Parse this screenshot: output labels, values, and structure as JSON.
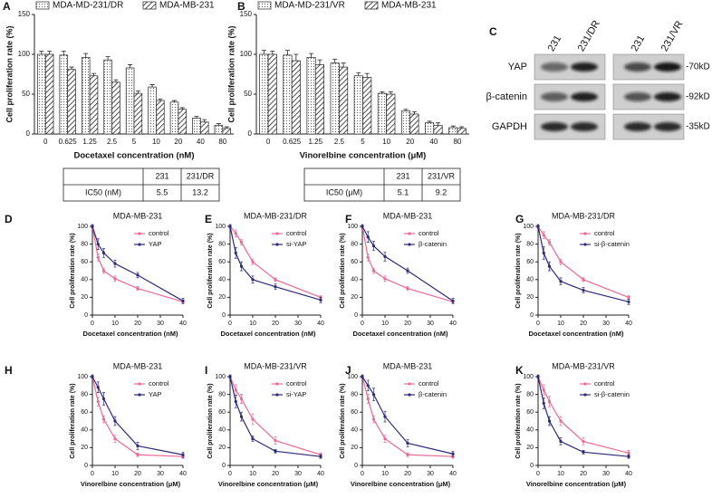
{
  "chart_data": [
    {
      "type": "bar",
      "panel": "A",
      "y_label": "Cell proliferation rate (%)",
      "x_label": "Docetaxel concentration (nM)",
      "categories": [
        "0",
        "0.625",
        "1.25",
        "2.5",
        "5",
        "10",
        "20",
        "40",
        "80"
      ],
      "series": [
        {
          "name": "MDA-MD-231/DR",
          "color": "#222222",
          "pattern": "dots",
          "values": [
            100,
            99,
            96,
            93,
            83,
            59,
            40,
            20,
            11
          ],
          "errors": [
            4,
            5,
            5,
            4,
            4,
            3,
            2,
            2,
            2
          ]
        },
        {
          "name": "MDA-MB-231",
          "color": "#222222",
          "pattern": "hatch",
          "values": [
            100,
            81,
            73,
            65,
            51,
            42,
            31,
            15,
            7
          ],
          "errors": [
            4,
            3,
            3,
            3,
            3,
            2,
            2,
            3,
            2
          ]
        }
      ],
      "ylim": [
        0,
        150
      ],
      "yticks": [
        0,
        50,
        100,
        150
      ],
      "legend": "top"
    },
    {
      "type": "bar",
      "panel": "B",
      "y_label": "Cell proliferation rate (%)",
      "x_label": "Vinorelbine concentration (μM)",
      "categories": [
        "0",
        "0.625",
        "1.25",
        "2.5",
        "5",
        "10",
        "20",
        "40",
        "80"
      ],
      "series": [
        {
          "name": "MDA-MD-231/VR",
          "color": "#222222",
          "pattern": "dots",
          "values": [
            100,
            99,
            96,
            89,
            73,
            51,
            29,
            14,
            8
          ],
          "errors": [
            5,
            6,
            5,
            5,
            4,
            2,
            2,
            2,
            2
          ]
        },
        {
          "name": "MDA-MB-231",
          "color": "#222222",
          "pattern": "hatch",
          "values": [
            100,
            92,
            87,
            84,
            71,
            50,
            25,
            11,
            7
          ],
          "errors": [
            4,
            8,
            6,
            5,
            5,
            3,
            3,
            3,
            2
          ]
        }
      ],
      "ylim": [
        0,
        150
      ],
      "yticks": [
        0,
        50,
        100,
        150
      ],
      "legend": "top"
    },
    {
      "type": "line",
      "panel": "D",
      "title": "MDA-MB-231",
      "y_label": "Cell proliferation rate (%)",
      "x_label": "Docetaxel concentration (nM)",
      "x": [
        0,
        2.5,
        5,
        10,
        20,
        40
      ],
      "series": [
        {
          "name": "control",
          "color": "#ea6a95",
          "values": [
            100,
            65,
            50,
            41,
            30,
            15
          ],
          "errors": [
            2,
            4,
            3,
            3,
            2,
            2
          ]
        },
        {
          "name": "YAP",
          "color": "#2d2a78",
          "values": [
            100,
            80,
            70,
            58,
            45,
            16
          ],
          "errors": [
            2,
            6,
            5,
            4,
            3,
            3
          ]
        }
      ],
      "xlim": [
        0,
        40
      ],
      "xticks": [
        0,
        10,
        20,
        30,
        40
      ],
      "ylim": [
        0,
        100
      ],
      "yticks": [
        0,
        20,
        40,
        60,
        80,
        100
      ],
      "legend": "upper right"
    },
    {
      "type": "line",
      "panel": "E",
      "title": "MDA-MB-231/DR",
      "y_label": "Cell proliferation rate (%)",
      "x_label": "Docetaxel concentration (nM)",
      "x": [
        0,
        2.5,
        5,
        10,
        20,
        40
      ],
      "series": [
        {
          "name": "control",
          "color": "#ea6a95",
          "values": [
            100,
            92,
            82,
            60,
            40,
            20
          ],
          "errors": [
            2,
            4,
            3,
            3,
            2,
            2
          ]
        },
        {
          "name": "si-YAP",
          "color": "#2d2a78",
          "values": [
            100,
            70,
            55,
            40,
            32,
            17
          ],
          "errors": [
            2,
            6,
            5,
            4,
            3,
            3
          ]
        }
      ],
      "xlim": [
        0,
        40
      ],
      "xticks": [
        0,
        10,
        20,
        30,
        40
      ],
      "ylim": [
        0,
        100
      ],
      "yticks": [
        0,
        20,
        40,
        60,
        80,
        100
      ],
      "legend": "upper right"
    },
    {
      "type": "line",
      "panel": "F",
      "title": "MDA-MB-231",
      "y_label": "Cell proliferation rate (%)",
      "x_label": "Docetaxel concentration (nM)",
      "x": [
        0,
        2.5,
        5,
        10,
        20,
        40
      ],
      "series": [
        {
          "name": "control",
          "color": "#ea6a95",
          "values": [
            100,
            65,
            50,
            41,
            30,
            15
          ],
          "errors": [
            2,
            4,
            3,
            3,
            2,
            2
          ]
        },
        {
          "name": "β-catenin",
          "color": "#2d2a78",
          "values": [
            100,
            88,
            78,
            66,
            50,
            16
          ],
          "errors": [
            2,
            6,
            5,
            5,
            3,
            3
          ]
        }
      ],
      "xlim": [
        0,
        40
      ],
      "xticks": [
        0,
        10,
        20,
        30,
        40
      ],
      "ylim": [
        0,
        100
      ],
      "yticks": [
        0,
        20,
        40,
        60,
        80,
        100
      ],
      "legend": "upper right"
    },
    {
      "type": "line",
      "panel": "G",
      "title": "MDA-MB-231/DR",
      "y_label": "Cell proliferation rate (%)",
      "x_label": "Docetaxel concentration (nM)",
      "x": [
        0,
        2.5,
        5,
        10,
        20,
        40
      ],
      "series": [
        {
          "name": "control",
          "color": "#ea6a95",
          "values": [
            100,
            90,
            82,
            60,
            40,
            20
          ],
          "errors": [
            2,
            4,
            3,
            3,
            2,
            2
          ]
        },
        {
          "name": "si-β-catenin",
          "color": "#2d2a78",
          "values": [
            100,
            70,
            55,
            38,
            28,
            15
          ],
          "errors": [
            2,
            7,
            5,
            4,
            3,
            3
          ]
        }
      ],
      "xlim": [
        0,
        40
      ],
      "xticks": [
        0,
        10,
        20,
        30,
        40
      ],
      "ylim": [
        0,
        100
      ],
      "yticks": [
        0,
        20,
        40,
        60,
        80,
        100
      ],
      "legend": "upper right"
    },
    {
      "type": "line",
      "panel": "H",
      "title": "MDA-MB-231",
      "y_label": "Cell proliferation rate (%)",
      "x_label": "Vinorelbine concentration (μM)",
      "x": [
        0,
        2.5,
        5,
        10,
        20,
        40
      ],
      "series": [
        {
          "name": "control",
          "color": "#ea6a95",
          "values": [
            100,
            72,
            52,
            30,
            12,
            10
          ],
          "errors": [
            2,
            5,
            4,
            4,
            2,
            2
          ]
        },
        {
          "name": "YAP",
          "color": "#2d2a78",
          "values": [
            100,
            88,
            75,
            50,
            22,
            12
          ],
          "errors": [
            2,
            6,
            7,
            5,
            4,
            3
          ]
        }
      ],
      "xlim": [
        0,
        40
      ],
      "xticks": [
        0,
        10,
        20,
        30,
        40
      ],
      "ylim": [
        0,
        100
      ],
      "yticks": [
        0,
        20,
        40,
        60,
        80,
        100
      ],
      "legend": "upper right"
    },
    {
      "type": "line",
      "panel": "I",
      "title": "MDA-MB-231/VR",
      "y_label": "Cell proliferation rate (%)",
      "x_label": "Vinorelbine concentration (μM)",
      "x": [
        0,
        2.5,
        5,
        10,
        20,
        40
      ],
      "series": [
        {
          "name": "control",
          "color": "#ea6a95",
          "values": [
            100,
            85,
            75,
            52,
            28,
            12
          ],
          "errors": [
            2,
            6,
            5,
            6,
            4,
            2
          ]
        },
        {
          "name": "si-YAP",
          "color": "#2d2a78",
          "values": [
            100,
            72,
            55,
            30,
            16,
            10
          ],
          "errors": [
            2,
            7,
            5,
            3,
            2,
            2
          ]
        }
      ],
      "xlim": [
        0,
        40
      ],
      "xticks": [
        0,
        10,
        20,
        30,
        40
      ],
      "ylim": [
        0,
        100
      ],
      "yticks": [
        0,
        20,
        40,
        60,
        80,
        100
      ],
      "legend": "upper right"
    },
    {
      "type": "line",
      "panel": "J",
      "title": "MDA-MB-231",
      "y_label": "Cell proliferation rate (%)",
      "x_label": "Vinorelbine concentration (μM)",
      "x": [
        0,
        2.5,
        5,
        10,
        20,
        40
      ],
      "series": [
        {
          "name": "control",
          "color": "#ea6a95",
          "values": [
            100,
            75,
            52,
            30,
            12,
            10
          ],
          "errors": [
            2,
            5,
            4,
            4,
            2,
            2
          ]
        },
        {
          "name": "β-catenin",
          "color": "#2d2a78",
          "values": [
            100,
            90,
            80,
            55,
            25,
            13
          ],
          "errors": [
            2,
            6,
            7,
            6,
            4,
            3
          ]
        }
      ],
      "xlim": [
        0,
        40
      ],
      "xticks": [
        0,
        10,
        20,
        30,
        40
      ],
      "ylim": [
        0,
        100
      ],
      "yticks": [
        0,
        20,
        40,
        60,
        80,
        100
      ],
      "legend": "upper right"
    },
    {
      "type": "line",
      "panel": "K",
      "title": "MDA-MB-231/VR",
      "y_label": "Cell proliferation rate (%)",
      "x_label": "Vinorelbine concentration (μM)",
      "x": [
        0,
        2.5,
        5,
        10,
        20,
        40
      ],
      "series": [
        {
          "name": "control",
          "color": "#ea6a95",
          "values": [
            100,
            85,
            72,
            50,
            27,
            14
          ],
          "errors": [
            2,
            6,
            6,
            5,
            4,
            3
          ]
        },
        {
          "name": "si-β-catenin",
          "color": "#2d2a78",
          "values": [
            100,
            70,
            50,
            27,
            15,
            10
          ],
          "errors": [
            2,
            6,
            5,
            4,
            2,
            2
          ]
        }
      ],
      "xlim": [
        0,
        40
      ],
      "xticks": [
        0,
        10,
        20,
        30,
        40
      ],
      "ylim": [
        0,
        100
      ],
      "yticks": [
        0,
        20,
        40,
        60,
        80,
        100
      ],
      "legend": "upper right"
    }
  ],
  "tables": [
    {
      "columns": [
        "231",
        "231/DR"
      ],
      "row_label": "IC50 (nM)",
      "values": [
        5.5,
        13.2
      ]
    },
    {
      "columns": [
        "231",
        "231/VR"
      ],
      "row_label": "IC50 (μM)",
      "values": [
        5.1,
        9.2
      ]
    }
  ],
  "blot": {
    "panel": "C",
    "lanes": [
      "231",
      "231/DR",
      "231",
      "231/VR"
    ],
    "proteins": [
      "YAP",
      "β-catenin",
      "GAPDH"
    ],
    "sizes": [
      "-70kD",
      "-92kD",
      "-35kD"
    ]
  }
}
